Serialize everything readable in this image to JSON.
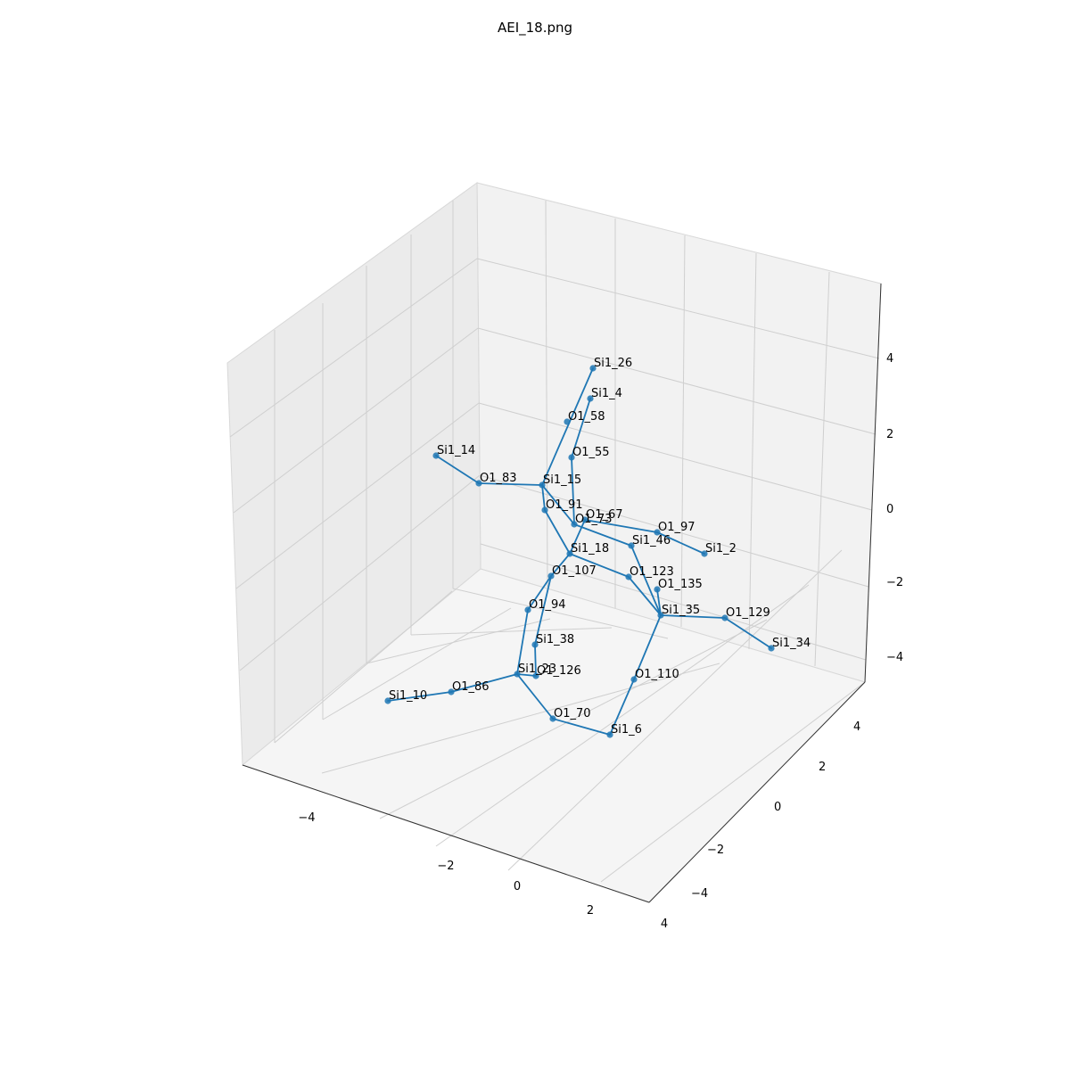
{
  "chart_data": {
    "type": "scatter3d",
    "title": "AEI_18.png",
    "series_color": "#1f77b4",
    "pane_colors": {
      "back": "#f2f2f2",
      "side": "#ebebeb",
      "floor": "#f5f5f5",
      "grid": "#cfcfcf"
    },
    "axes": {
      "x": {
        "ticks": [
          "−4",
          "−2",
          "0",
          "2",
          "4"
        ]
      },
      "y": {
        "ticks": [
          "−4",
          "−2",
          "0",
          "2",
          "4"
        ]
      },
      "z": {
        "ticks": [
          "−4",
          "−2",
          "0",
          "2",
          "4"
        ]
      }
    },
    "nodes": [
      {
        "label": "Si1_26"
      },
      {
        "label": "Si1_4"
      },
      {
        "label": "O1_58"
      },
      {
        "label": "O1_55"
      },
      {
        "label": "Si1_14"
      },
      {
        "label": "O1_83"
      },
      {
        "label": "Si1_15"
      },
      {
        "label": "O1_91"
      },
      {
        "label": "O1_73"
      },
      {
        "label": "O1_67"
      },
      {
        "label": "O1_97"
      },
      {
        "label": "Si1_2"
      },
      {
        "label": "Si1_46"
      },
      {
        "label": "Si1_18"
      },
      {
        "label": "O1_107"
      },
      {
        "label": "O1_123"
      },
      {
        "label": "O1_135"
      },
      {
        "label": "O1_94"
      },
      {
        "label": "Si1_35"
      },
      {
        "label": "O1_129"
      },
      {
        "label": "Si1_34"
      },
      {
        "label": "Si1_38"
      },
      {
        "label": "Si1_23"
      },
      {
        "label": "O1_126"
      },
      {
        "label": "O1_110"
      },
      {
        "label": "Si1_10"
      },
      {
        "label": "O1_86"
      },
      {
        "label": "O1_70"
      },
      {
        "label": "Si1_6"
      }
    ],
    "edges": [
      [
        "Si1_26",
        "Si1_15"
      ],
      [
        "Si1_4",
        "O1_55"
      ],
      [
        "O1_55",
        "O1_73"
      ],
      [
        "Si1_14",
        "O1_83"
      ],
      [
        "O1_83",
        "Si1_15"
      ],
      [
        "Si1_15",
        "O1_91"
      ],
      [
        "O1_91",
        "Si1_18"
      ],
      [
        "Si1_15",
        "O1_73"
      ],
      [
        "O1_73",
        "Si1_46"
      ],
      [
        "Si1_46",
        "Si1_35"
      ],
      [
        "O1_67",
        "O1_97"
      ],
      [
        "O1_97",
        "Si1_2"
      ],
      [
        "O1_67",
        "Si1_18"
      ],
      [
        "Si1_18",
        "O1_107"
      ],
      [
        "Si1_18",
        "O1_123"
      ],
      [
        "O1_123",
        "Si1_35"
      ],
      [
        "O1_107",
        "O1_94"
      ],
      [
        "O1_94",
        "Si1_23"
      ],
      [
        "O1_107",
        "Si1_38"
      ],
      [
        "Si1_38",
        "O1_126"
      ],
      [
        "Si1_35",
        "O1_129"
      ],
      [
        "O1_129",
        "Si1_34"
      ],
      [
        "Si1_35",
        "O1_135"
      ],
      [
        "Si1_35",
        "O1_110"
      ],
      [
        "O1_110",
        "Si1_6"
      ],
      [
        "Si1_23",
        "O1_86"
      ],
      [
        "O1_86",
        "Si1_10"
      ],
      [
        "Si1_23",
        "O1_70"
      ],
      [
        "O1_70",
        "Si1_6"
      ],
      [
        "Si1_23",
        "O1_126"
      ]
    ]
  }
}
